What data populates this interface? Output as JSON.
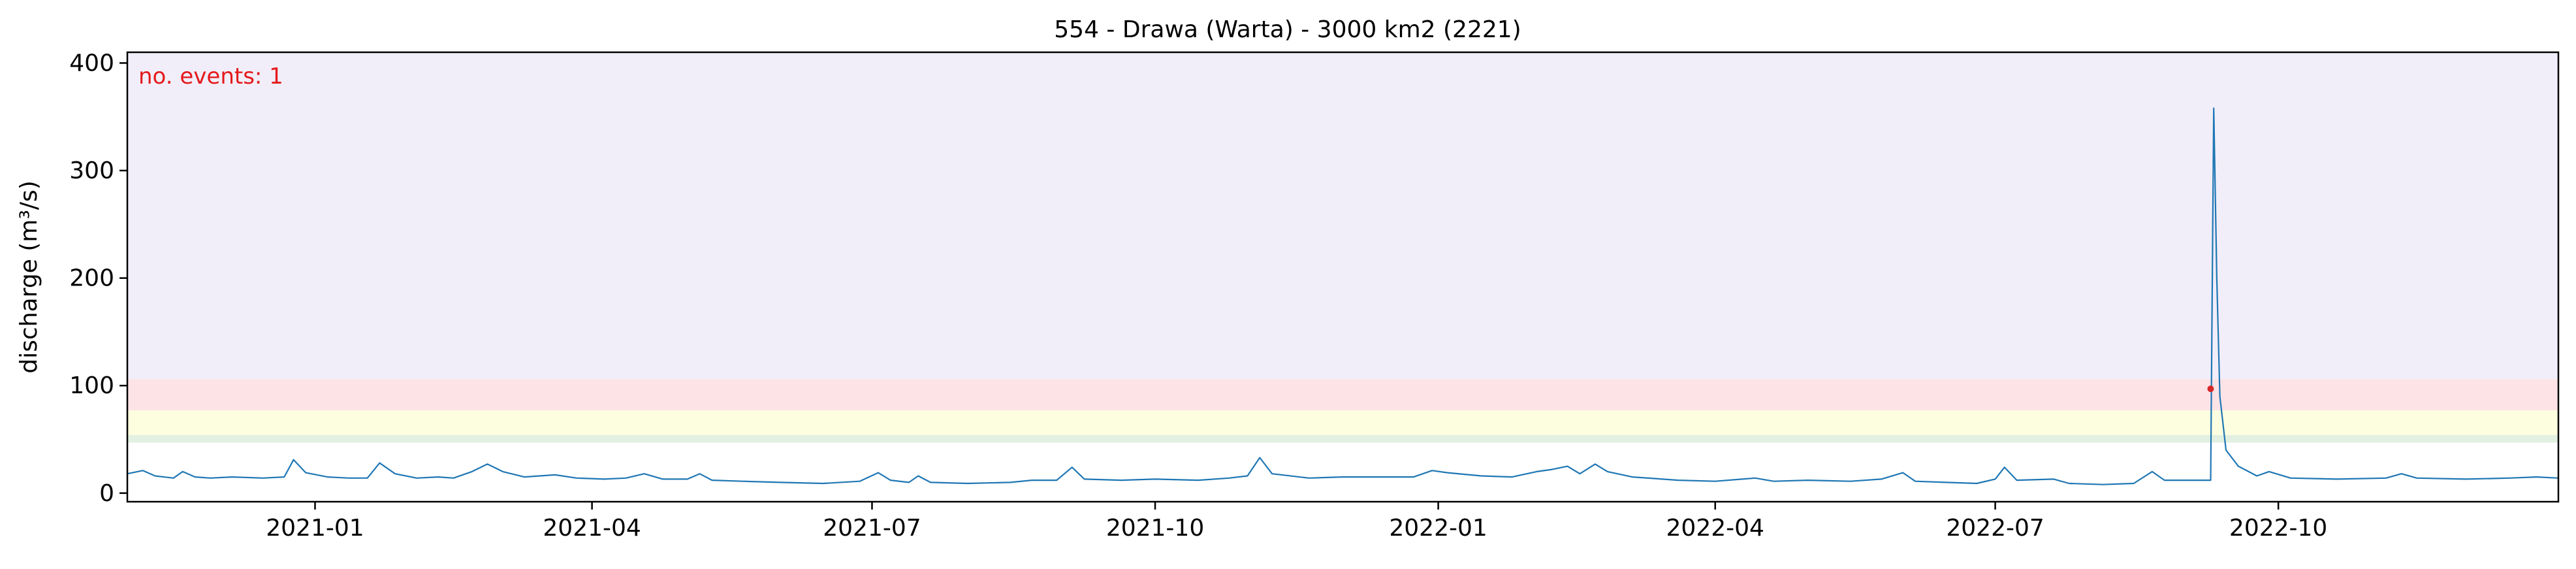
{
  "chart_data": {
    "type": "line",
    "title": "554 - Drawa (Warta) - 3000 km2 (2221)",
    "xlabel": "",
    "ylabel": "discharge (m³/s)",
    "annotation": "no. events: 1",
    "xlim": [
      "2020-11-01",
      "2022-12-31"
    ],
    "ylim": [
      -8,
      410
    ],
    "yticks": [
      0,
      100,
      200,
      300,
      400
    ],
    "xticks": [
      {
        "date": "2021-01-01",
        "label": "2021-01"
      },
      {
        "date": "2021-04-01",
        "label": "2021-04"
      },
      {
        "date": "2021-07-01",
        "label": "2021-07"
      },
      {
        "date": "2021-10-01",
        "label": "2021-10"
      },
      {
        "date": "2022-01-01",
        "label": "2022-01"
      },
      {
        "date": "2022-04-01",
        "label": "2022-04"
      },
      {
        "date": "2022-07-01",
        "label": "2022-07"
      },
      {
        "date": "2022-10-01",
        "label": "2022-10"
      }
    ],
    "grid": false,
    "bands": [
      {
        "y0": 47,
        "y1": 54,
        "color": "#e1f0e1"
      },
      {
        "y0": 54,
        "y1": 77,
        "color": "#fdfde0"
      },
      {
        "y0": 77,
        "y1": 106,
        "color": "#fde3e6"
      },
      {
        "y0": 106,
        "y1": 410,
        "color": "#f1eef9"
      }
    ],
    "series": [
      {
        "color": "#1f77b4",
        "points": [
          [
            "2020-11-01",
            18
          ],
          [
            "2020-11-06",
            21
          ],
          [
            "2020-11-10",
            16
          ],
          [
            "2020-11-16",
            14
          ],
          [
            "2020-11-19",
            20
          ],
          [
            "2020-11-23",
            15
          ],
          [
            "2020-11-28",
            14
          ],
          [
            "2020-12-05",
            15
          ],
          [
            "2020-12-15",
            14
          ],
          [
            "2020-12-22",
            15
          ],
          [
            "2020-12-25",
            31
          ],
          [
            "2020-12-29",
            19
          ],
          [
            "2021-01-05",
            15
          ],
          [
            "2021-01-12",
            14
          ],
          [
            "2021-01-18",
            14
          ],
          [
            "2021-01-22",
            28
          ],
          [
            "2021-01-27",
            18
          ],
          [
            "2021-02-03",
            14
          ],
          [
            "2021-02-10",
            15
          ],
          [
            "2021-02-15",
            14
          ],
          [
            "2021-02-21",
            20
          ],
          [
            "2021-02-26",
            27
          ],
          [
            "2021-03-03",
            20
          ],
          [
            "2021-03-10",
            15
          ],
          [
            "2021-03-20",
            17
          ],
          [
            "2021-03-27",
            14
          ],
          [
            "2021-04-05",
            13
          ],
          [
            "2021-04-12",
            14
          ],
          [
            "2021-04-18",
            18
          ],
          [
            "2021-04-24",
            13
          ],
          [
            "2021-05-02",
            13
          ],
          [
            "2021-05-06",
            18
          ],
          [
            "2021-05-10",
            12
          ],
          [
            "2021-05-20",
            11
          ],
          [
            "2021-06-01",
            10
          ],
          [
            "2021-06-15",
            9
          ],
          [
            "2021-06-27",
            11
          ],
          [
            "2021-07-03",
            19
          ],
          [
            "2021-07-07",
            12
          ],
          [
            "2021-07-13",
            10
          ],
          [
            "2021-07-16",
            16
          ],
          [
            "2021-07-20",
            10
          ],
          [
            "2021-08-01",
            9
          ],
          [
            "2021-08-15",
            10
          ],
          [
            "2021-08-22",
            12
          ],
          [
            "2021-08-30",
            12
          ],
          [
            "2021-09-04",
            24
          ],
          [
            "2021-09-08",
            13
          ],
          [
            "2021-09-20",
            12
          ],
          [
            "2021-10-01",
            13
          ],
          [
            "2021-10-15",
            12
          ],
          [
            "2021-10-25",
            14
          ],
          [
            "2021-10-31",
            16
          ],
          [
            "2021-11-04",
            33
          ],
          [
            "2021-11-08",
            18
          ],
          [
            "2021-11-20",
            14
          ],
          [
            "2021-12-01",
            15
          ],
          [
            "2021-12-15",
            15
          ],
          [
            "2021-12-24",
            15
          ],
          [
            "2021-12-30",
            21
          ],
          [
            "2022-01-04",
            19
          ],
          [
            "2022-01-15",
            16
          ],
          [
            "2022-01-25",
            15
          ],
          [
            "2022-02-02",
            20
          ],
          [
            "2022-02-07",
            22
          ],
          [
            "2022-02-12",
            25
          ],
          [
            "2022-02-16",
            18
          ],
          [
            "2022-02-21",
            27
          ],
          [
            "2022-02-25",
            20
          ],
          [
            "2022-03-05",
            15
          ],
          [
            "2022-03-20",
            12
          ],
          [
            "2022-04-01",
            11
          ],
          [
            "2022-04-14",
            14
          ],
          [
            "2022-04-20",
            11
          ],
          [
            "2022-05-01",
            12
          ],
          [
            "2022-05-15",
            11
          ],
          [
            "2022-05-25",
            13
          ],
          [
            "2022-06-01",
            19
          ],
          [
            "2022-06-05",
            11
          ],
          [
            "2022-06-15",
            10
          ],
          [
            "2022-06-25",
            9
          ],
          [
            "2022-07-01",
            13
          ],
          [
            "2022-07-04",
            24
          ],
          [
            "2022-07-08",
            12
          ],
          [
            "2022-07-20",
            13
          ],
          [
            "2022-07-25",
            9
          ],
          [
            "2022-08-05",
            8
          ],
          [
            "2022-08-15",
            9
          ],
          [
            "2022-08-21",
            20
          ],
          [
            "2022-08-25",
            12
          ],
          [
            "2022-09-05",
            12
          ],
          [
            "2022-09-09",
            12
          ],
          [
            "2022-09-10",
            358
          ],
          [
            "2022-09-11",
            200
          ],
          [
            "2022-09-12",
            90
          ],
          [
            "2022-09-14",
            40
          ],
          [
            "2022-09-18",
            25
          ],
          [
            "2022-09-24",
            16
          ],
          [
            "2022-09-28",
            20
          ],
          [
            "2022-10-05",
            14
          ],
          [
            "2022-10-20",
            13
          ],
          [
            "2022-11-05",
            14
          ],
          [
            "2022-11-10",
            18
          ],
          [
            "2022-11-15",
            14
          ],
          [
            "2022-12-01",
            13
          ],
          [
            "2022-12-15",
            14
          ],
          [
            "2022-12-24",
            15
          ],
          [
            "2022-12-31",
            14
          ]
        ]
      }
    ],
    "events": [
      {
        "date": "2022-09-09",
        "y": 97,
        "color": "#d62728"
      }
    ]
  }
}
